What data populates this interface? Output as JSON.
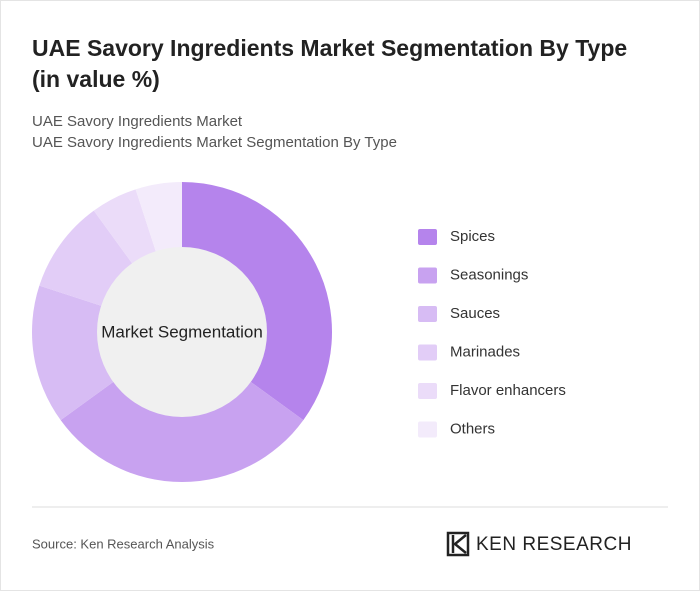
{
  "chart_data": {
    "type": "donut",
    "title": "UAE Savory Ingredients Market Segmentation By Type (in value %)",
    "subtitle": [
      "UAE Savory Ingredients Market",
      "UAE Savory Ingredients Market Segmentation By Type"
    ],
    "center_label": "Market Segmentation",
    "categories": [
      "Spices",
      "Seasonings",
      "Sauces",
      "Marinades",
      "Flavor enhancers",
      "Others"
    ],
    "values": [
      35,
      30,
      15,
      10,
      5,
      5
    ],
    "colors": [
      "#b584ec",
      "#c8a2f0",
      "#d7bcf4",
      "#e2cdf7",
      "#ebdcf9",
      "#f3ebfb"
    ],
    "source": "Source: Ken Research Analysis",
    "brand": "KEN RESEARCH"
  }
}
